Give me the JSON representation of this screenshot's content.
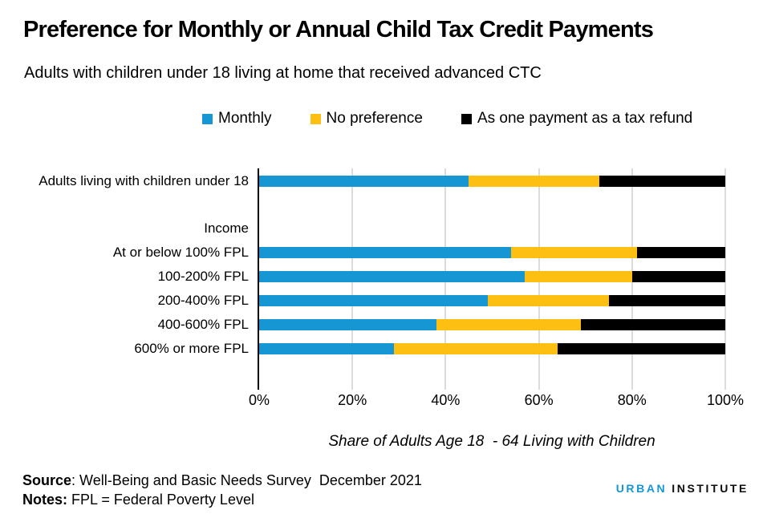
{
  "title": "Preference for Monthly or Annual Child Tax Credit Payments",
  "subtitle": "Adults with children under 18 living at home that received advanced CTC",
  "chart_data": {
    "type": "bar",
    "orientation": "horizontal",
    "stacked": true,
    "unit": "percent",
    "title": "Preference for Monthly or Annual Child Tax Credit Payments",
    "subtitle": "Adults with children under 18 living at home that received advanced CTC",
    "categories": [
      "Adults living with children under 18",
      "Income",
      "At or below 100% FPL",
      "100-200% FPL",
      "200-400% FPL",
      "400-600% FPL",
      "600% or more FPL"
    ],
    "header_rows": [
      1
    ],
    "series": [
      {
        "name": "Monthly",
        "color": "#1696D2",
        "values": [
          45,
          null,
          54,
          57,
          49,
          38,
          29
        ]
      },
      {
        "name": "No preference",
        "color": "#FDBF11",
        "values": [
          28,
          null,
          27,
          23,
          26,
          31,
          35
        ]
      },
      {
        "name": "As one payment as a tax refund",
        "color": "#000000",
        "values": [
          27,
          null,
          19,
          20,
          25,
          31,
          36
        ]
      }
    ],
    "xlabel": "Share of Adults Age 18  - 64 Living with Children",
    "ylabel": "",
    "xlim": [
      0,
      100
    ],
    "xticks": [
      {
        "value": 0,
        "label": "0%"
      },
      {
        "value": 20,
        "label": "20%"
      },
      {
        "value": 40,
        "label": "40%"
      },
      {
        "value": 60,
        "label": "60%"
      },
      {
        "value": 80,
        "label": "80%"
      },
      {
        "value": 100,
        "label": "100%"
      }
    ],
    "gridlines": [
      20,
      40,
      60,
      80,
      100
    ],
    "gridline_color": "#DBDBDB",
    "legend_position": "top"
  },
  "footer": {
    "source_label": "Source",
    "source_text": ": Well-Being and Basic Needs Survey  December 2021",
    "notes_label": "Notes:",
    "notes_text": " FPL = Federal Poverty Level"
  },
  "logo": {
    "part1": "URBAN",
    "part2": "INSTITUTE",
    "brand_color": "#1696D2"
  }
}
